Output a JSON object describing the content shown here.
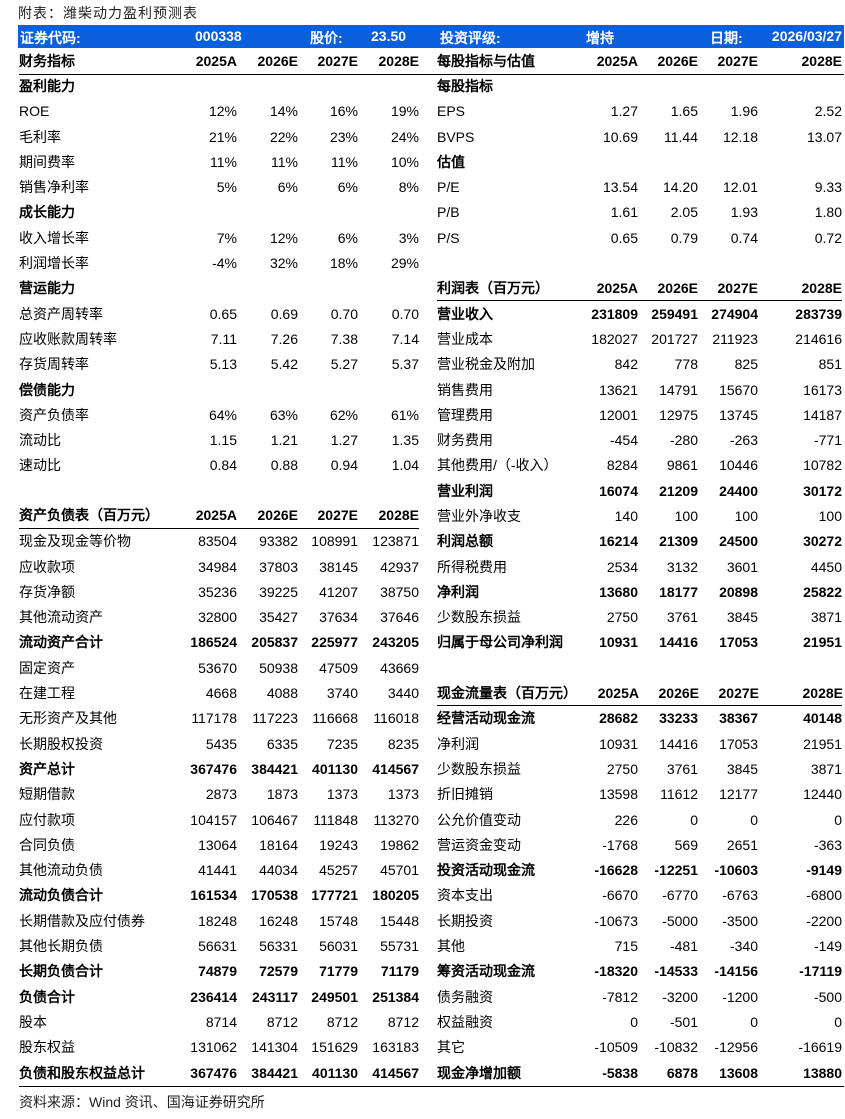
{
  "title": "附表：潍柴动力盈利预测表",
  "header_bar": {
    "code_label": "证券代码:",
    "code": "000338",
    "price_label": "股价:",
    "price": "23.50",
    "rating_label": "投资评级:",
    "rating": "增持",
    "date_label": "日期:",
    "date": "2026/03/27",
    "color": "#0a5fdc"
  },
  "years": [
    "2025A",
    "2026E",
    "2027E",
    "2028E"
  ],
  "left": [
    {
      "type": "hdr",
      "label": "财务指标",
      "values": [
        "2025A",
        "2026E",
        "2027E",
        "2028E"
      ]
    },
    {
      "type": "sec",
      "label": "盈利能力",
      "values": []
    },
    {
      "type": "r",
      "label": "ROE",
      "values": [
        "12%",
        "14%",
        "16%",
        "19%"
      ]
    },
    {
      "type": "r",
      "label": "毛利率",
      "values": [
        "21%",
        "22%",
        "23%",
        "24%"
      ]
    },
    {
      "type": "r",
      "label": "期间费率",
      "values": [
        "11%",
        "11%",
        "11%",
        "10%"
      ]
    },
    {
      "type": "r",
      "label": "销售净利率",
      "values": [
        "5%",
        "6%",
        "6%",
        "8%"
      ]
    },
    {
      "type": "sec",
      "label": "成长能力",
      "values": []
    },
    {
      "type": "r",
      "label": "收入增长率",
      "values": [
        "7%",
        "12%",
        "6%",
        "3%"
      ]
    },
    {
      "type": "r",
      "label": "利润增长率",
      "values": [
        "-4%",
        "32%",
        "18%",
        "29%"
      ]
    },
    {
      "type": "sec",
      "label": "营运能力",
      "values": []
    },
    {
      "type": "r",
      "label": "总资产周转率",
      "values": [
        "0.65",
        "0.69",
        "0.70",
        "0.70"
      ]
    },
    {
      "type": "r",
      "label": "应收账款周转率",
      "values": [
        "7.11",
        "7.26",
        "7.38",
        "7.14"
      ]
    },
    {
      "type": "r",
      "label": "存货周转率",
      "values": [
        "5.13",
        "5.42",
        "5.27",
        "5.37"
      ]
    },
    {
      "type": "sec",
      "label": "偿债能力",
      "values": []
    },
    {
      "type": "r",
      "label": "资产负债率",
      "values": [
        "64%",
        "63%",
        "62%",
        "61%"
      ]
    },
    {
      "type": "r",
      "label": "流动比",
      "values": [
        "1.15",
        "1.21",
        "1.27",
        "1.35"
      ]
    },
    {
      "type": "r",
      "label": "速动比",
      "values": [
        "0.84",
        "0.88",
        "0.94",
        "1.04"
      ]
    },
    {
      "type": "blank",
      "label": "",
      "values": []
    },
    {
      "type": "hdr",
      "label": "资产负债表（百万元）",
      "values": [
        "2025A",
        "2026E",
        "2027E",
        "2028E"
      ]
    },
    {
      "type": "r",
      "label": "现金及现金等价物",
      "values": [
        "83504",
        "93382",
        "108991",
        "123871"
      ]
    },
    {
      "type": "r",
      "label": "应收款项",
      "values": [
        "34984",
        "37803",
        "38145",
        "42937"
      ]
    },
    {
      "type": "r",
      "label": "存货净额",
      "values": [
        "35236",
        "39225",
        "41207",
        "38750"
      ]
    },
    {
      "type": "r",
      "label": "其他流动资产",
      "values": [
        "32800",
        "35427",
        "37634",
        "37646"
      ]
    },
    {
      "type": "b",
      "label": "流动资产合计",
      "values": [
        "186524",
        "205837",
        "225977",
        "243205"
      ]
    },
    {
      "type": "r",
      "label": "固定资产",
      "values": [
        "53670",
        "50938",
        "47509",
        "43669"
      ]
    },
    {
      "type": "r",
      "label": "在建工程",
      "values": [
        "4668",
        "4088",
        "3740",
        "3440"
      ]
    },
    {
      "type": "r",
      "label": "无形资产及其他",
      "values": [
        "117178",
        "117223",
        "116668",
        "116018"
      ]
    },
    {
      "type": "r",
      "label": "长期股权投资",
      "values": [
        "5435",
        "6335",
        "7235",
        "8235"
      ]
    },
    {
      "type": "b",
      "label": "资产总计",
      "values": [
        "367476",
        "384421",
        "401130",
        "414567"
      ]
    },
    {
      "type": "r",
      "label": "短期借款",
      "values": [
        "2873",
        "1873",
        "1373",
        "1373"
      ]
    },
    {
      "type": "r",
      "label": "应付款项",
      "values": [
        "104157",
        "106467",
        "111848",
        "113270"
      ]
    },
    {
      "type": "r",
      "label": "合同负债",
      "values": [
        "13064",
        "18164",
        "19243",
        "19862"
      ]
    },
    {
      "type": "r",
      "label": "其他流动负债",
      "values": [
        "41441",
        "44034",
        "45257",
        "45701"
      ]
    },
    {
      "type": "b",
      "label": "流动负债合计",
      "values": [
        "161534",
        "170538",
        "177721",
        "180205"
      ]
    },
    {
      "type": "r",
      "label": "长期借款及应付债券",
      "values": [
        "18248",
        "16248",
        "15748",
        "15448"
      ]
    },
    {
      "type": "r",
      "label": "其他长期负债",
      "values": [
        "56631",
        "56331",
        "56031",
        "55731"
      ]
    },
    {
      "type": "b",
      "label": "长期负债合计",
      "values": [
        "74879",
        "72579",
        "71779",
        "71179"
      ]
    },
    {
      "type": "b",
      "label": "负债合计",
      "values": [
        "236414",
        "243117",
        "249501",
        "251384"
      ]
    },
    {
      "type": "r",
      "label": "股本",
      "values": [
        "8714",
        "8712",
        "8712",
        "8712"
      ]
    },
    {
      "type": "r",
      "label": "股东权益",
      "values": [
        "131062",
        "141304",
        "151629",
        "163183"
      ]
    },
    {
      "type": "b",
      "label": "负债和股东权益总计",
      "values": [
        "367476",
        "384421",
        "401130",
        "414567"
      ]
    }
  ],
  "right": [
    {
      "type": "hdr",
      "label": "每股指标与估值",
      "values": [
        "2025A",
        "2026E",
        "2027E",
        "2028E"
      ]
    },
    {
      "type": "sec",
      "label": "每股指标",
      "values": []
    },
    {
      "type": "r",
      "label": "EPS",
      "values": [
        "1.27",
        "1.65",
        "1.96",
        "2.52"
      ]
    },
    {
      "type": "r",
      "label": "BVPS",
      "values": [
        "10.69",
        "11.44",
        "12.18",
        "13.07"
      ]
    },
    {
      "type": "sec",
      "label": "估值",
      "values": []
    },
    {
      "type": "r",
      "label": "P/E",
      "values": [
        "13.54",
        "14.20",
        "12.01",
        "9.33"
      ]
    },
    {
      "type": "r",
      "label": "P/B",
      "values": [
        "1.61",
        "2.05",
        "1.93",
        "1.80"
      ]
    },
    {
      "type": "r",
      "label": "P/S",
      "values": [
        "0.65",
        "0.79",
        "0.74",
        "0.72"
      ]
    },
    {
      "type": "blank",
      "label": "",
      "values": []
    },
    {
      "type": "hdr",
      "label": "利润表（百万元）",
      "values": [
        "2025A",
        "2026E",
        "2027E",
        "2028E"
      ]
    },
    {
      "type": "b",
      "label": "营业收入",
      "values": [
        "231809",
        "259491",
        "274904",
        "283739"
      ]
    },
    {
      "type": "r",
      "label": "营业成本",
      "values": [
        "182027",
        "201727",
        "211923",
        "214616"
      ]
    },
    {
      "type": "r",
      "label": "营业税金及附加",
      "values": [
        "842",
        "778",
        "825",
        "851"
      ]
    },
    {
      "type": "r",
      "label": "销售费用",
      "values": [
        "13621",
        "14791",
        "15670",
        "16173"
      ]
    },
    {
      "type": "r",
      "label": "管理费用",
      "values": [
        "12001",
        "12975",
        "13745",
        "14187"
      ]
    },
    {
      "type": "r",
      "label": "财务费用",
      "values": [
        "-454",
        "-280",
        "-263",
        "-771"
      ]
    },
    {
      "type": "r",
      "label": "其他费用/（-收入）",
      "values": [
        "8284",
        "9861",
        "10446",
        "10782"
      ]
    },
    {
      "type": "b",
      "label": "营业利润",
      "values": [
        "16074",
        "21209",
        "24400",
        "30172"
      ]
    },
    {
      "type": "r",
      "label": "营业外净收支",
      "values": [
        "140",
        "100",
        "100",
        "100"
      ]
    },
    {
      "type": "b",
      "label": "利润总额",
      "values": [
        "16214",
        "21309",
        "24500",
        "30272"
      ]
    },
    {
      "type": "r",
      "label": "所得税费用",
      "values": [
        "2534",
        "3132",
        "3601",
        "4450"
      ]
    },
    {
      "type": "b",
      "label": "净利润",
      "values": [
        "13680",
        "18177",
        "20898",
        "25822"
      ]
    },
    {
      "type": "r",
      "label": "少数股东损益",
      "values": [
        "2750",
        "3761",
        "3845",
        "3871"
      ]
    },
    {
      "type": "b",
      "label": "归属于母公司净利润",
      "values": [
        "10931",
        "14416",
        "17053",
        "21951"
      ]
    },
    {
      "type": "blank",
      "label": "",
      "values": []
    },
    {
      "type": "hdr",
      "label": "现金流量表（百万元）",
      "values": [
        "2025A",
        "2026E",
        "2027E",
        "2028E"
      ]
    },
    {
      "type": "b",
      "label": "经营活动现金流",
      "values": [
        "28682",
        "33233",
        "38367",
        "40148"
      ]
    },
    {
      "type": "r",
      "label": "净利润",
      "values": [
        "10931",
        "14416",
        "17053",
        "21951"
      ]
    },
    {
      "type": "r",
      "label": "少数股东损益",
      "values": [
        "2750",
        "3761",
        "3845",
        "3871"
      ]
    },
    {
      "type": "r",
      "label": "折旧摊销",
      "values": [
        "13598",
        "11612",
        "12177",
        "12440"
      ]
    },
    {
      "type": "r",
      "label": "公允价值变动",
      "values": [
        "226",
        "0",
        "0",
        "0"
      ]
    },
    {
      "type": "r",
      "label": "营运资金变动",
      "values": [
        "-1768",
        "569",
        "2651",
        "-363"
      ]
    },
    {
      "type": "b",
      "label": "投资活动现金流",
      "values": [
        "-16628",
        "-12251",
        "-10603",
        "-9149"
      ]
    },
    {
      "type": "r",
      "label": "资本支出",
      "values": [
        "-6670",
        "-6770",
        "-6763",
        "-6800"
      ]
    },
    {
      "type": "r",
      "label": "长期投资",
      "values": [
        "-10673",
        "-5000",
        "-3500",
        "-2200"
      ]
    },
    {
      "type": "r",
      "label": "其他",
      "values": [
        "715",
        "-481",
        "-340",
        "-149"
      ]
    },
    {
      "type": "b",
      "label": "筹资活动现金流",
      "values": [
        "-18320",
        "-14533",
        "-14156",
        "-17119"
      ]
    },
    {
      "type": "r",
      "label": "债务融资",
      "values": [
        "-7812",
        "-3200",
        "-1200",
        "-500"
      ]
    },
    {
      "type": "r",
      "label": "权益融资",
      "values": [
        "0",
        "-501",
        "0",
        "0"
      ]
    },
    {
      "type": "r",
      "label": "其它",
      "values": [
        "-10509",
        "-10832",
        "-12956",
        "-16619"
      ]
    },
    {
      "type": "b",
      "label": "现金净增加额",
      "values": [
        "-5838",
        "6878",
        "13608",
        "13880"
      ]
    }
  ],
  "footer": "资料来源：Wind 资讯、国海证券研究所"
}
